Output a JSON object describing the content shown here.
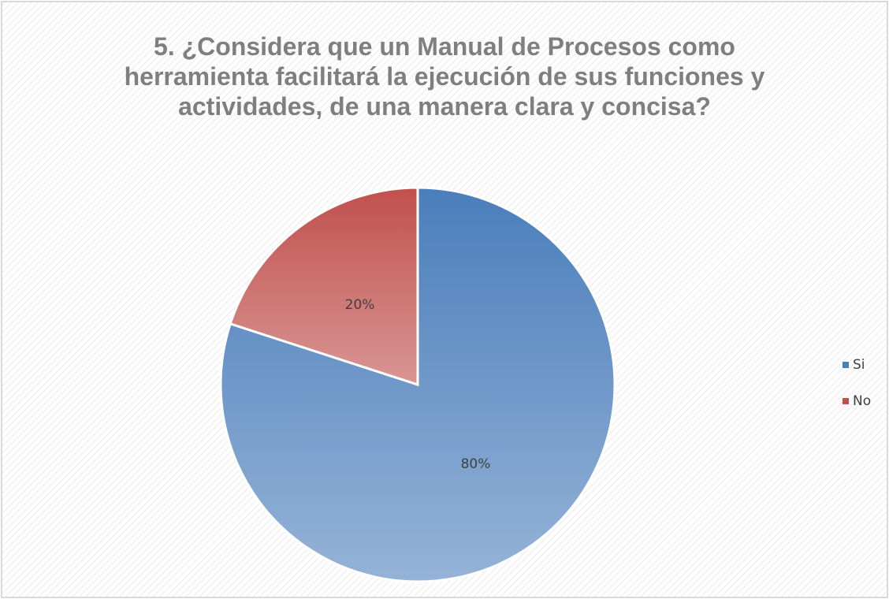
{
  "chart_data": {
    "type": "pie",
    "title": "5. ¿Considera que un Manual de Procesos como herramienta facilitará la ejecución de sus funciones y actividades, de una manera clara y concisa?",
    "categories": [
      "Si",
      "No"
    ],
    "values": [
      80,
      20
    ],
    "value_labels": [
      "80%",
      "20%"
    ],
    "colors": [
      "#4a7ebb",
      "#c0504d"
    ],
    "legend": "right"
  }
}
